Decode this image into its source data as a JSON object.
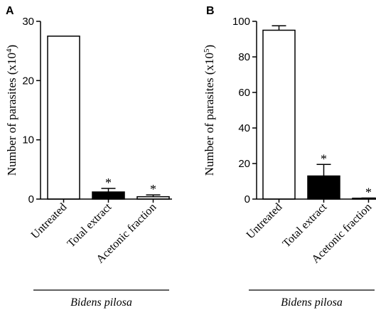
{
  "chart_data": [
    {
      "type": "bar",
      "panel_label": "A",
      "ylabel_main": "Number of parasites (x10",
      "ylabel_exp": "4",
      "ylabel_close": ")",
      "ylim": [
        0,
        30
      ],
      "yticks": [
        0,
        10,
        20,
        30
      ],
      "categories": [
        "Untreated",
        "Total extract",
        "Acetonic fraction"
      ],
      "values": [
        27.5,
        1.2,
        0.4
      ],
      "errors": [
        0,
        0.6,
        0.3
      ],
      "significance": [
        "",
        "*",
        "*"
      ],
      "bar_fills": [
        "#ffffff",
        "#000000",
        "#ffffff"
      ],
      "group_label": "Bidens pilosa"
    },
    {
      "type": "bar",
      "panel_label": "B",
      "ylabel_main": "Number of parasites (x10",
      "ylabel_exp": "5",
      "ylabel_close": ")",
      "ylim": [
        0,
        100
      ],
      "yticks": [
        0,
        20,
        40,
        60,
        80,
        100
      ],
      "categories": [
        "Untreated",
        "Total extract",
        "Acetonic fraction"
      ],
      "values": [
        95,
        13,
        0.3
      ],
      "errors": [
        2.5,
        6.5,
        0.3
      ],
      "significance": [
        "",
        "*",
        "*"
      ],
      "bar_fills": [
        "#ffffff",
        "#000000",
        "#ffffff"
      ],
      "group_label": "Bidens pilosa"
    }
  ]
}
